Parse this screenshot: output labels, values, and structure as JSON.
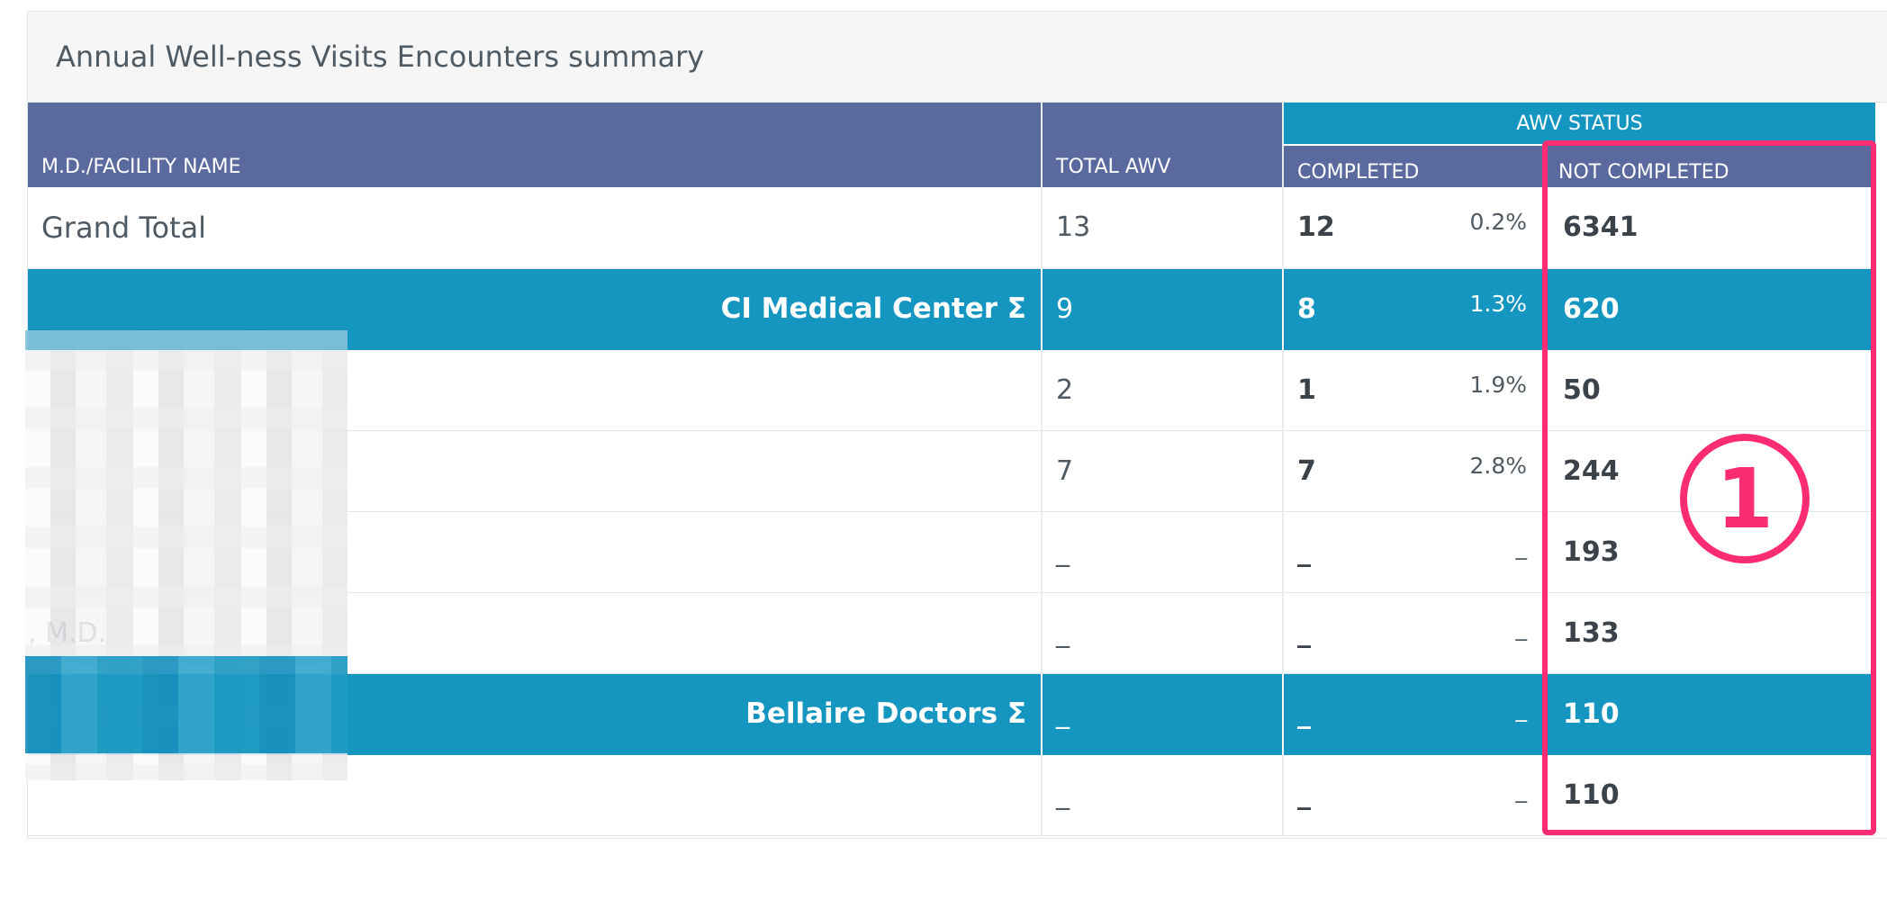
{
  "panel": {
    "title": "Annual Well-ness Visits Encounters summary"
  },
  "headers": {
    "name": "M.D./FACILITY NAME",
    "total_awv": "TOTAL AWV",
    "awv_status": "AWV STATUS",
    "completed": "COMPLETED",
    "not_completed": "NOT COMPLETED"
  },
  "rows": [
    {
      "type": "grand",
      "name": "Grand Total",
      "total": "13",
      "completed": "12",
      "pct": "0.2%",
      "not_completed": "6341"
    },
    {
      "type": "facility",
      "name": "CI Medical Center  Σ",
      "total": "9",
      "completed": "8",
      "pct": "1.3%",
      "not_completed": "620"
    },
    {
      "type": "doctor",
      "name": "",
      "total": "2",
      "completed": "1",
      "pct": "1.9%",
      "not_completed": "50"
    },
    {
      "type": "doctor",
      "name": "",
      "total": "7",
      "completed": "7",
      "pct": "2.8%",
      "not_completed": "244"
    },
    {
      "type": "doctor",
      "name": "",
      "total": "_",
      "completed": "_",
      "pct": "_",
      "not_completed": "193"
    },
    {
      "type": "doctor",
      "name": ", M.D.",
      "total": "_",
      "completed": "_",
      "pct": "_",
      "not_completed": "133"
    },
    {
      "type": "facility",
      "name": "Bellaire Doctors  Σ",
      "total": "_",
      "completed": "_",
      "pct": "_",
      "not_completed": "110"
    },
    {
      "type": "doctor",
      "name": "",
      "total": "_",
      "completed": "_",
      "pct": "_",
      "not_completed": "110"
    }
  ],
  "annotation": {
    "badge_number": "1",
    "color": "#fb2c73"
  },
  "colors": {
    "header": "#5a6a9e",
    "facility": "#1596c0",
    "highlight": "#fb2c73"
  }
}
